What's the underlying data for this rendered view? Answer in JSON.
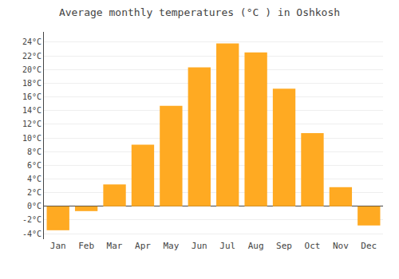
{
  "chart_data": {
    "type": "bar",
    "title": "Average monthly temperatures (°C ) in Oshkosh",
    "categories": [
      "Jan",
      "Feb",
      "Mar",
      "Apr",
      "May",
      "Jun",
      "Jul",
      "Aug",
      "Sep",
      "Oct",
      "Nov",
      "Dec"
    ],
    "values": [
      -3.5,
      -0.7,
      3.2,
      9.0,
      14.7,
      20.3,
      23.8,
      22.5,
      17.2,
      10.7,
      2.8,
      -2.8
    ],
    "color": "#FFAA22",
    "ylim": [
      -4.8,
      25.5
    ],
    "yticks": [
      {
        "value": -4,
        "label": "-4°C"
      },
      {
        "value": -2,
        "label": "-2°C"
      },
      {
        "value": 0,
        "label": "0°C"
      },
      {
        "value": 2,
        "label": "2°C"
      },
      {
        "value": 4,
        "label": "4°C"
      },
      {
        "value": 6,
        "label": "6°C"
      },
      {
        "value": 8,
        "label": "8°C"
      },
      {
        "value": 10,
        "label": "10°C"
      },
      {
        "value": 12,
        "label": "12°C"
      },
      {
        "value": 14,
        "label": "14°C"
      },
      {
        "value": 16,
        "label": "16°C"
      },
      {
        "value": 18,
        "label": "18°C"
      },
      {
        "value": 20,
        "label": "20°C"
      },
      {
        "value": 22,
        "label": "22°C"
      },
      {
        "value": 24,
        "label": "24°C"
      }
    ],
    "grid": true
  }
}
